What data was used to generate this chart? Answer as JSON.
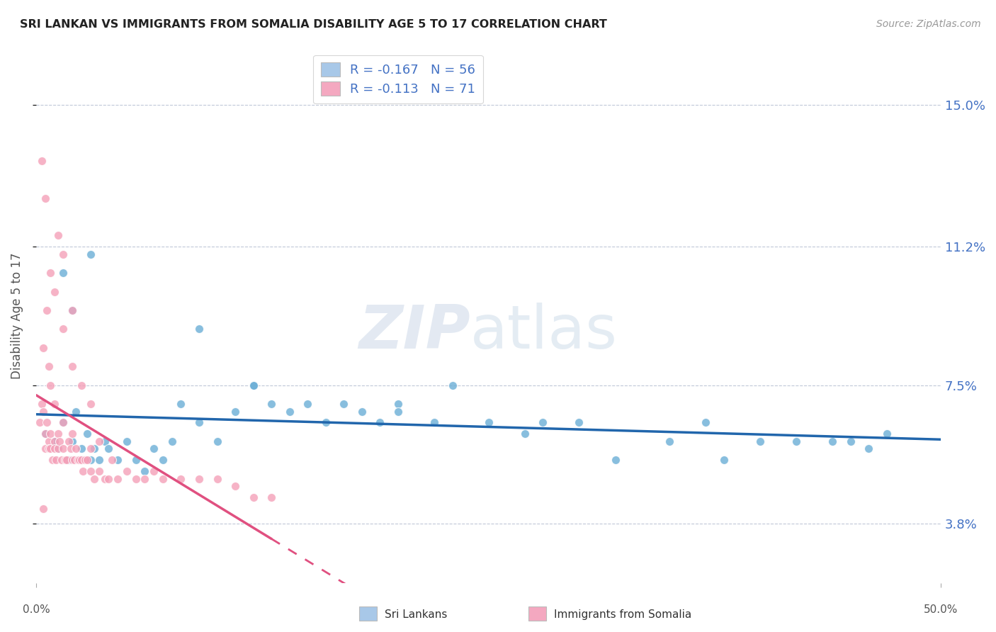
{
  "title": "SRI LANKAN VS IMMIGRANTS FROM SOMALIA DISABILITY AGE 5 TO 17 CORRELATION CHART",
  "source": "Source: ZipAtlas.com",
  "ylabel": "Disability Age 5 to 17",
  "yticks": [
    3.8,
    7.5,
    11.2,
    15.0
  ],
  "ytick_labels": [
    "3.8%",
    "7.5%",
    "11.2%",
    "15.0%"
  ],
  "xmin": 0.0,
  "xmax": 50.0,
  "ymin": 2.2,
  "ymax": 16.5,
  "legend1_label": "R = -0.167   N = 56",
  "legend2_label": "R = -0.113   N = 71",
  "legend1_color": "#a8c8e8",
  "legend2_color": "#f4a8c0",
  "scatter_blue_color": "#6baed6",
  "scatter_pink_color": "#f4a0b8",
  "trendline_blue_color": "#2166ac",
  "trendline_pink_color": "#e05080",
  "blue_points_x": [
    0.5,
    1.0,
    1.2,
    1.5,
    1.8,
    2.0,
    2.2,
    2.5,
    2.8,
    3.0,
    3.2,
    3.5,
    3.8,
    4.0,
    4.5,
    5.0,
    5.5,
    6.0,
    6.5,
    7.0,
    7.5,
    8.0,
    9.0,
    10.0,
    11.0,
    12.0,
    13.0,
    14.0,
    15.0,
    16.0,
    17.0,
    18.0,
    19.0,
    20.0,
    22.0,
    23.0,
    25.0,
    27.0,
    28.0,
    30.0,
    32.0,
    35.0,
    37.0,
    38.0,
    40.0,
    42.0,
    44.0,
    45.0,
    46.0,
    47.0,
    1.5,
    2.0,
    3.0,
    9.0,
    12.0,
    20.0
  ],
  "blue_points_y": [
    6.2,
    6.0,
    5.8,
    6.5,
    5.5,
    6.0,
    6.8,
    5.8,
    6.2,
    5.5,
    5.8,
    5.5,
    6.0,
    5.8,
    5.5,
    6.0,
    5.5,
    5.2,
    5.8,
    5.5,
    6.0,
    7.0,
    6.5,
    6.0,
    6.8,
    7.5,
    7.0,
    6.8,
    7.0,
    6.5,
    7.0,
    6.8,
    6.5,
    7.0,
    6.5,
    7.5,
    6.5,
    6.2,
    6.5,
    6.5,
    5.5,
    6.0,
    6.5,
    5.5,
    6.0,
    6.0,
    6.0,
    6.0,
    5.8,
    6.2,
    10.5,
    9.5,
    11.0,
    9.0,
    7.5,
    6.8
  ],
  "pink_points_x": [
    0.2,
    0.3,
    0.4,
    0.5,
    0.5,
    0.6,
    0.7,
    0.7,
    0.8,
    0.8,
    0.9,
    1.0,
    1.0,
    1.1,
    1.2,
    1.2,
    1.3,
    1.4,
    1.5,
    1.5,
    1.6,
    1.7,
    1.8,
    1.9,
    2.0,
    2.0,
    2.1,
    2.2,
    2.3,
    2.4,
    2.5,
    2.6,
    2.7,
    2.8,
    3.0,
    3.0,
    3.2,
    3.5,
    3.8,
    4.0,
    4.2,
    4.5,
    5.0,
    5.5,
    6.0,
    6.5,
    7.0,
    8.0,
    9.0,
    10.0,
    11.0,
    12.0,
    13.0,
    0.4,
    0.6,
    0.8,
    1.0,
    1.5,
    2.0,
    2.5,
    3.0,
    0.5,
    1.2,
    0.8,
    0.3,
    2.0,
    1.5,
    3.5,
    0.7,
    1.0,
    0.4
  ],
  "pink_points_y": [
    6.5,
    7.0,
    6.8,
    6.2,
    5.8,
    6.5,
    6.0,
    5.8,
    6.2,
    5.8,
    5.5,
    6.0,
    5.8,
    5.5,
    6.2,
    5.8,
    6.0,
    5.5,
    5.8,
    6.5,
    5.5,
    5.5,
    6.0,
    5.8,
    5.5,
    6.2,
    5.5,
    5.8,
    5.5,
    5.5,
    5.5,
    5.2,
    5.5,
    5.5,
    5.2,
    5.8,
    5.0,
    5.2,
    5.0,
    5.0,
    5.5,
    5.0,
    5.2,
    5.0,
    5.0,
    5.2,
    5.0,
    5.0,
    5.0,
    5.0,
    4.8,
    4.5,
    4.5,
    8.5,
    9.5,
    10.5,
    10.0,
    9.0,
    8.0,
    7.5,
    7.0,
    12.5,
    11.5,
    7.5,
    13.5,
    9.5,
    11.0,
    6.0,
    8.0,
    7.0,
    4.2
  ]
}
